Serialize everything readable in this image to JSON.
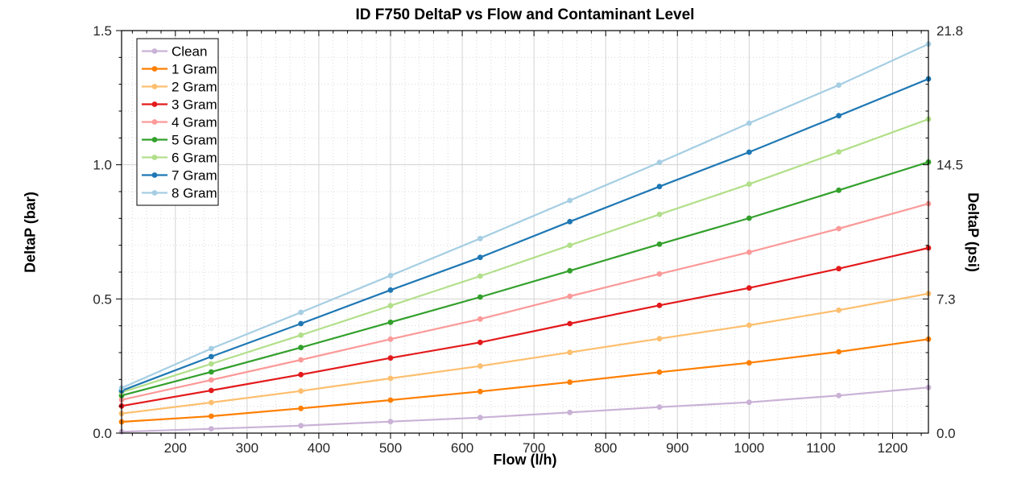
{
  "title": "ID F750 DeltaP vs Flow and Contaminant Level",
  "chart_data": {
    "type": "line",
    "title": "ID F750 DeltaP vs Flow and Contaminant Level",
    "xlabel": "Flow (l/h)",
    "ylabel_left": "DeltaP (bar)",
    "ylabel_right": "DeltaP (psi)",
    "xlim": [
      125,
      1250
    ],
    "ylim": [
      0,
      1.5
    ],
    "ylim_right_psi": [
      0,
      21.8
    ],
    "x_major_ticks": [
      200,
      300,
      400,
      500,
      600,
      700,
      800,
      900,
      1000,
      1100,
      1200
    ],
    "x_minor_step": 20,
    "y_left_major_ticks": [
      "0.0",
      "0.5",
      "1.0",
      "1.5"
    ],
    "y_left_major_values": [
      0,
      0.5,
      1.0,
      1.5
    ],
    "y_minor_step": 0.1,
    "y_right_tick_labels": [
      "0.0",
      "7.3",
      "14.5",
      "21.8"
    ],
    "y_right_tick_at_bar": [
      0,
      0.5,
      1.0,
      1.5
    ],
    "grid": {
      "major": "solid",
      "minor": "dotted",
      "on": true
    },
    "legend_position": "top-left-inside",
    "x": [
      125,
      250,
      375,
      500,
      625,
      750,
      875,
      1000,
      1125,
      1250
    ],
    "series": [
      {
        "name": "Clean",
        "color": "#CAB2D6",
        "values": [
          0.005,
          0.016,
          0.028,
          0.043,
          0.058,
          0.077,
          0.097,
          0.115,
          0.14,
          0.17
        ]
      },
      {
        "name": "1 Gram",
        "color": "#FF7F00",
        "values": [
          0.042,
          0.063,
          0.092,
          0.123,
          0.155,
          0.19,
          0.227,
          0.262,
          0.303,
          0.35
        ]
      },
      {
        "name": "2 Gram",
        "color": "#FDBF6F",
        "values": [
          0.073,
          0.114,
          0.157,
          0.204,
          0.25,
          0.301,
          0.352,
          0.402,
          0.458,
          0.52
        ]
      },
      {
        "name": "3 Gram",
        "color": "#E31A1C",
        "values": [
          0.101,
          0.159,
          0.218,
          0.28,
          0.338,
          0.408,
          0.476,
          0.541,
          0.613,
          0.69
        ]
      },
      {
        "name": "4 Gram",
        "color": "#FB9A99",
        "values": [
          0.124,
          0.198,
          0.273,
          0.35,
          0.425,
          0.51,
          0.593,
          0.674,
          0.762,
          0.855
        ]
      },
      {
        "name": "5 Gram",
        "color": "#33A02C",
        "values": [
          0.14,
          0.228,
          0.319,
          0.413,
          0.507,
          0.605,
          0.704,
          0.801,
          0.905,
          1.01
        ]
      },
      {
        "name": "6 Gram",
        "color": "#B2DF8A",
        "values": [
          0.152,
          0.258,
          0.365,
          0.475,
          0.585,
          0.7,
          0.815,
          0.928,
          1.048,
          1.17
        ]
      },
      {
        "name": "7 Gram",
        "color": "#1F78B4",
        "values": [
          0.158,
          0.285,
          0.408,
          0.533,
          0.655,
          0.788,
          0.919,
          1.047,
          1.183,
          1.32
        ]
      },
      {
        "name": "8 Gram",
        "color": "#A6CEE3",
        "values": [
          0.168,
          0.315,
          0.45,
          0.587,
          0.725,
          0.867,
          1.009,
          1.155,
          1.297,
          1.45
        ]
      }
    ],
    "colors": {
      "axis": "#000000",
      "tick_text": "#262626",
      "grid_major": "#d3d3d3",
      "grid_minor": "#d9d9d9",
      "background": "#ffffff"
    }
  }
}
